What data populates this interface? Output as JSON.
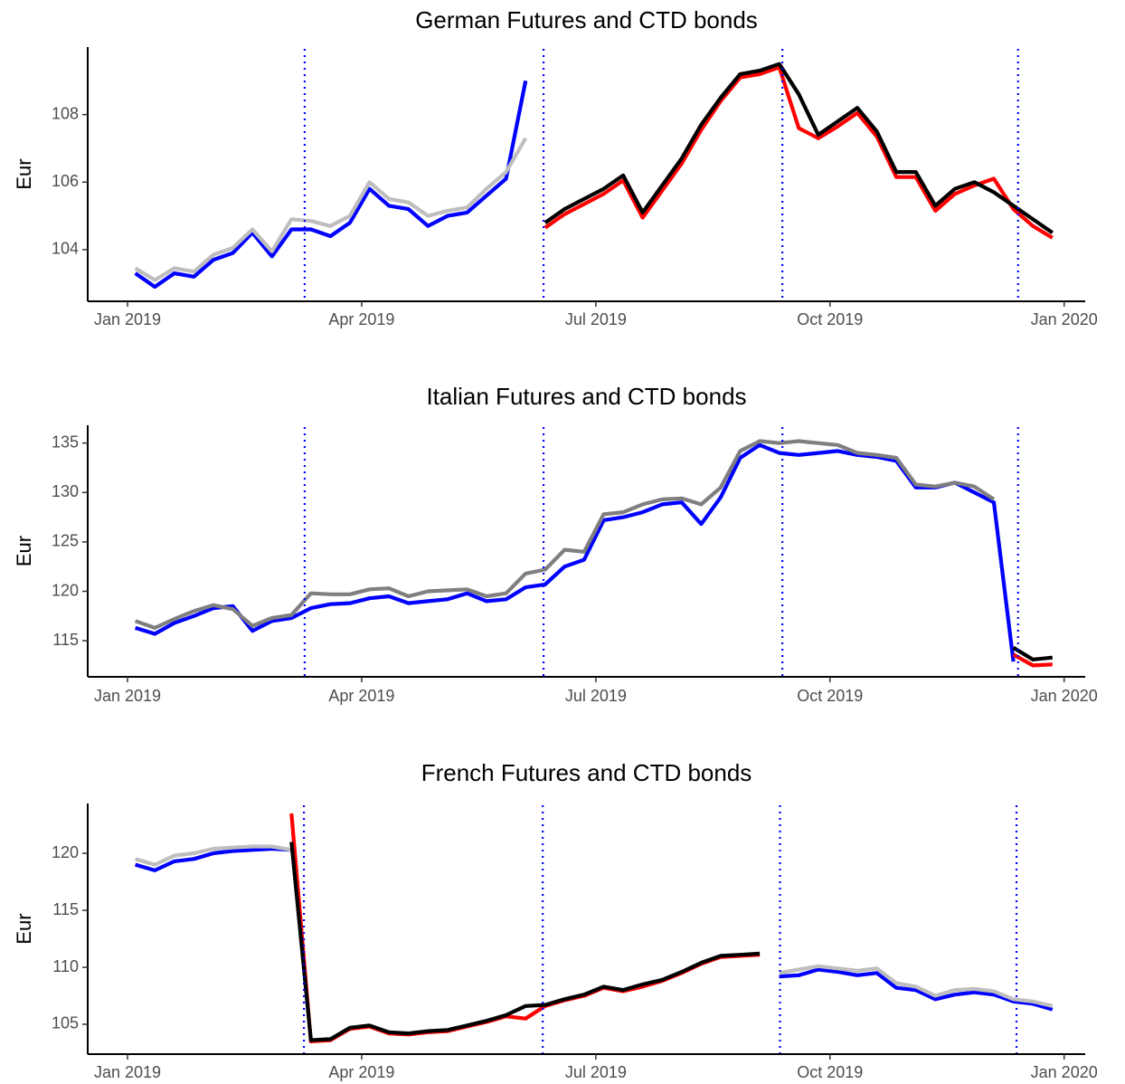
{
  "chart_data": [
    {
      "type": "line",
      "title": "German Futures and CTD bonds",
      "ylabel": "Eur",
      "x": [
        0.1,
        0.35,
        0.6,
        0.85,
        1.1,
        1.35,
        1.6,
        1.85,
        2.1,
        2.35,
        2.6,
        2.85,
        3.1,
        3.35,
        3.6,
        3.85,
        4.1,
        4.35,
        4.6,
        4.85,
        5.1,
        5.35,
        5.6,
        5.85,
        6.1,
        6.35,
        6.6,
        6.85,
        7.1,
        7.35,
        7.6,
        7.85,
        8.1,
        8.35,
        8.6,
        8.85,
        9.1,
        9.35,
        9.6,
        9.85,
        10.1,
        10.35,
        10.6,
        10.85,
        11.1,
        11.35,
        11.6,
        11.85
      ],
      "xlim": [
        -0.51,
        12.27
      ],
      "xticks": [
        {
          "value": 0,
          "label": "Jan 2019"
        },
        {
          "value": 3,
          "label": "Apr 2019"
        },
        {
          "value": 6,
          "label": "Jul 2019"
        },
        {
          "value": 9,
          "label": "Oct 2019"
        },
        {
          "value": 12,
          "label": "Jan 2020"
        }
      ],
      "ylim": [
        102.47,
        110.0
      ],
      "yticks": [
        104,
        106,
        108
      ],
      "vlines": {
        "values": [
          2.27,
          5.33,
          8.39,
          11.41
        ],
        "color": "#0000ff"
      },
      "series": [
        {
          "color": "#0000ff",
          "values": [
            103.3,
            102.9,
            103.3,
            103.2,
            103.7,
            103.9,
            104.5,
            103.8,
            104.6,
            104.6,
            104.4,
            104.8,
            105.8,
            105.3,
            105.2,
            104.7,
            105.0,
            105.1,
            105.6,
            106.1,
            109.0,
            null,
            null,
            null,
            null,
            null,
            null,
            null,
            null,
            null,
            null,
            null,
            null,
            null,
            null,
            null,
            null,
            null,
            null,
            null,
            null,
            null,
            null,
            null,
            null,
            null,
            null,
            null
          ]
        },
        {
          "color": "#bebebe",
          "values": [
            103.45,
            103.1,
            103.45,
            103.35,
            103.85,
            104.05,
            104.6,
            103.95,
            104.9,
            104.85,
            104.7,
            105.0,
            106.0,
            105.5,
            105.4,
            105.0,
            105.15,
            105.25,
            105.8,
            106.3,
            107.3,
            null,
            null,
            null,
            null,
            null,
            null,
            null,
            null,
            null,
            null,
            null,
            null,
            null,
            null,
            null,
            null,
            null,
            null,
            null,
            null,
            null,
            null,
            null,
            null,
            null,
            null,
            null
          ]
        },
        {
          "color": "#ff0000",
          "values": [
            null,
            null,
            null,
            null,
            null,
            null,
            null,
            null,
            null,
            null,
            null,
            null,
            null,
            null,
            null,
            null,
            null,
            null,
            null,
            null,
            null,
            104.65,
            105.05,
            105.35,
            105.65,
            106.05,
            104.95,
            105.75,
            106.55,
            107.55,
            108.4,
            109.1,
            109.2,
            109.4,
            107.6,
            107.3,
            107.65,
            108.05,
            107.35,
            106.15,
            106.15,
            105.15,
            105.65,
            105.9,
            106.1,
            105.2,
            104.7,
            104.35
          ]
        },
        {
          "color": "#000000",
          "values": [
            null,
            null,
            null,
            null,
            null,
            null,
            null,
            null,
            null,
            null,
            null,
            null,
            null,
            null,
            null,
            null,
            null,
            null,
            null,
            null,
            null,
            104.8,
            105.2,
            105.5,
            105.8,
            106.2,
            105.1,
            105.9,
            106.7,
            107.7,
            108.5,
            109.2,
            109.3,
            109.5,
            108.6,
            107.4,
            107.8,
            108.2,
            107.5,
            106.3,
            106.3,
            105.3,
            105.8,
            106.0,
            105.7,
            105.3,
            104.9,
            104.5
          ]
        }
      ]
    },
    {
      "type": "line",
      "title": "Italian Futures and CTD bonds",
      "ylabel": "Eur",
      "x": [
        0.1,
        0.35,
        0.6,
        0.85,
        1.1,
        1.35,
        1.6,
        1.85,
        2.1,
        2.35,
        2.6,
        2.85,
        3.1,
        3.35,
        3.6,
        3.85,
        4.1,
        4.35,
        4.6,
        4.85,
        5.1,
        5.35,
        5.6,
        5.85,
        6.1,
        6.35,
        6.6,
        6.85,
        7.1,
        7.35,
        7.6,
        7.85,
        8.1,
        8.35,
        8.6,
        8.85,
        9.1,
        9.35,
        9.6,
        9.85,
        10.1,
        10.35,
        10.6,
        10.85,
        11.1,
        11.35,
        11.6,
        11.85
      ],
      "xlim": [
        -0.51,
        12.27
      ],
      "xticks": [
        {
          "value": 0,
          "label": "Jan 2019"
        },
        {
          "value": 3,
          "label": "Apr 2019"
        },
        {
          "value": 6,
          "label": "Jul 2019"
        },
        {
          "value": 9,
          "label": "Oct 2019"
        },
        {
          "value": 12,
          "label": "Jan 2020"
        }
      ],
      "ylim": [
        111.35,
        136.8
      ],
      "yticks": [
        115,
        120,
        125,
        130,
        135
      ],
      "vlines": {
        "values": [
          2.27,
          5.33,
          8.39,
          11.41
        ],
        "color": "#0000ff"
      },
      "series": [
        {
          "color": "#0000ff",
          "values": [
            116.3,
            115.7,
            116.8,
            117.5,
            118.3,
            118.5,
            116.0,
            117.0,
            117.3,
            118.3,
            118.7,
            118.8,
            119.3,
            119.5,
            118.8,
            119.0,
            119.2,
            119.8,
            119.0,
            119.2,
            120.4,
            120.7,
            122.5,
            123.2,
            127.2,
            127.5,
            128.0,
            128.8,
            129.0,
            126.8,
            129.5,
            133.5,
            134.8,
            134.0,
            133.8,
            134.0,
            134.2,
            133.8,
            133.6,
            133.2,
            130.5,
            130.5,
            131.0,
            130.0,
            129.0,
            112.9,
            null,
            null
          ]
        },
        {
          "color": "#7f7f7f",
          "values": [
            117.0,
            116.3,
            117.2,
            118.0,
            118.6,
            118.2,
            116.5,
            117.3,
            117.6,
            119.8,
            119.7,
            119.7,
            120.2,
            120.3,
            119.5,
            120.0,
            120.1,
            120.2,
            119.5,
            119.8,
            121.8,
            122.2,
            124.2,
            124.0,
            127.8,
            128.0,
            128.8,
            129.3,
            129.4,
            128.8,
            130.5,
            134.2,
            135.2,
            135.0,
            135.2,
            135.0,
            134.8,
            134.0,
            133.8,
            133.5,
            130.8,
            130.6,
            131.0,
            130.6,
            129.3,
            null,
            null,
            null
          ]
        },
        {
          "color": "#ff0000",
          "values": [
            null,
            null,
            null,
            null,
            null,
            null,
            null,
            null,
            null,
            null,
            null,
            null,
            null,
            null,
            null,
            null,
            null,
            null,
            null,
            null,
            null,
            null,
            null,
            null,
            null,
            null,
            null,
            null,
            null,
            null,
            null,
            null,
            null,
            null,
            null,
            null,
            null,
            null,
            null,
            null,
            null,
            null,
            null,
            null,
            null,
            113.6,
            112.5,
            112.6
          ]
        },
        {
          "color": "#000000",
          "values": [
            null,
            null,
            null,
            null,
            null,
            null,
            null,
            null,
            null,
            null,
            null,
            null,
            null,
            null,
            null,
            null,
            null,
            null,
            null,
            null,
            null,
            null,
            null,
            null,
            null,
            null,
            null,
            null,
            null,
            null,
            null,
            null,
            null,
            null,
            null,
            null,
            null,
            null,
            null,
            null,
            null,
            null,
            null,
            null,
            null,
            114.3,
            113.1,
            113.3
          ]
        }
      ]
    },
    {
      "type": "line",
      "title": "French Futures and CTD bonds",
      "ylabel": "Eur",
      "x": [
        0.1,
        0.35,
        0.6,
        0.85,
        1.1,
        1.35,
        1.6,
        1.85,
        2.1,
        2.35,
        2.6,
        2.85,
        3.1,
        3.35,
        3.6,
        3.85,
        4.1,
        4.35,
        4.6,
        4.85,
        5.1,
        5.35,
        5.6,
        5.85,
        6.1,
        6.35,
        6.6,
        6.85,
        7.1,
        7.35,
        7.6,
        7.85,
        8.1,
        8.35,
        8.6,
        8.85,
        9.1,
        9.35,
        9.6,
        9.85,
        10.1,
        10.35,
        10.6,
        10.85,
        11.1,
        11.35,
        11.6,
        11.85
      ],
      "xlim": [
        -0.51,
        12.27
      ],
      "xticks": [
        {
          "value": 0,
          "label": "Jan 2019"
        },
        {
          "value": 3,
          "label": "Apr 2019"
        },
        {
          "value": 6,
          "label": "Jul 2019"
        },
        {
          "value": 9,
          "label": "Oct 2019"
        },
        {
          "value": 12,
          "label": "Jan 2020"
        }
      ],
      "ylim": [
        102.38,
        124.37
      ],
      "yticks": [
        105,
        110,
        115,
        120
      ],
      "vlines": {
        "values": [
          2.26,
          5.32,
          8.36,
          11.39
        ],
        "color": "#0000ff"
      },
      "series": [
        {
          "color": "#0000ff",
          "values": [
            119.0,
            118.5,
            119.3,
            119.5,
            120.0,
            120.2,
            120.3,
            120.4,
            120.3,
            null,
            null,
            null,
            null,
            null,
            null,
            null,
            null,
            null,
            null,
            null,
            null,
            null,
            null,
            null,
            null,
            null,
            null,
            null,
            null,
            null,
            null,
            null,
            null,
            109.2,
            109.3,
            109.8,
            109.6,
            109.3,
            109.5,
            108.2,
            108.0,
            107.2,
            107.6,
            107.8,
            107.6,
            107.0,
            106.8,
            106.3
          ]
        },
        {
          "color": "#bebebe",
          "values": [
            119.5,
            119.0,
            119.8,
            120.0,
            120.4,
            120.5,
            120.6,
            120.6,
            120.3,
            null,
            null,
            null,
            null,
            null,
            null,
            null,
            null,
            null,
            null,
            null,
            null,
            null,
            null,
            null,
            null,
            null,
            null,
            null,
            null,
            null,
            null,
            null,
            null,
            109.5,
            109.8,
            110.1,
            109.9,
            109.7,
            109.9,
            108.6,
            108.3,
            107.5,
            108.0,
            108.1,
            107.9,
            107.2,
            107.0,
            106.6
          ]
        },
        {
          "color": "#ff0000",
          "values": [
            null,
            null,
            null,
            null,
            null,
            null,
            null,
            null,
            123.5,
            103.5,
            103.6,
            104.6,
            104.8,
            104.2,
            104.1,
            104.3,
            104.4,
            104.8,
            105.2,
            105.7,
            105.5,
            106.6,
            107.1,
            107.5,
            108.2,
            107.9,
            108.3,
            108.8,
            109.5,
            110.3,
            110.9,
            111.0,
            111.1,
            null,
            null,
            null,
            null,
            null,
            null,
            null,
            null,
            null,
            null,
            null,
            null,
            null,
            null,
            null
          ]
        },
        {
          "color": "#000000",
          "values": [
            null,
            null,
            null,
            null,
            null,
            null,
            null,
            null,
            121.0,
            103.6,
            103.7,
            104.7,
            104.9,
            104.3,
            104.2,
            104.4,
            104.5,
            104.9,
            105.3,
            105.8,
            106.6,
            106.7,
            107.2,
            107.6,
            108.3,
            108.0,
            108.5,
            108.9,
            109.6,
            110.4,
            111.0,
            111.1,
            111.2,
            null,
            null,
            null,
            null,
            null,
            null,
            null,
            null,
            null,
            null,
            null,
            null,
            null,
            null,
            null
          ]
        }
      ]
    }
  ]
}
